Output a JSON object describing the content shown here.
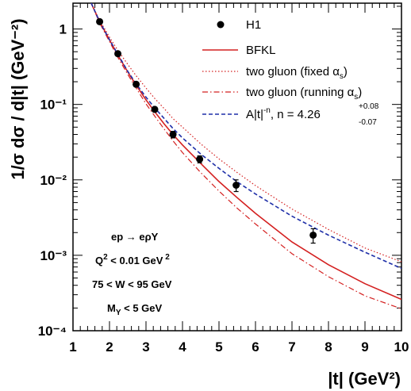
{
  "chart_data": {
    "type": "line",
    "xlabel": "|t| (GeV²)",
    "ylabel": "1/σ dσ / d|t| (GeV⁻²)",
    "xlim": [
      1,
      10
    ],
    "ylim": [
      0.0001,
      2.2
    ],
    "yscale": "log",
    "x_ticks": [
      1,
      2,
      3,
      4,
      5,
      6,
      7,
      8,
      9,
      10
    ],
    "y_ticks": [
      {
        "value": 1,
        "label": "1"
      },
      {
        "value": 0.1,
        "label": "10⁻¹"
      },
      {
        "value": 0.01,
        "label": "10⁻²"
      },
      {
        "value": 0.001,
        "label": "10⁻³"
      },
      {
        "value": 0.0001,
        "label": "10⁻⁴"
      }
    ],
    "legend_position": "top-right",
    "grid": false,
    "points": {
      "name": "H1",
      "color": "#000000",
      "data": [
        {
          "x": 1.73,
          "y": 1.25,
          "err_low": 0.08,
          "err_high": 0.08
        },
        {
          "x": 2.23,
          "y": 0.47,
          "err_low": 0.03,
          "err_high": 0.03
        },
        {
          "x": 2.73,
          "y": 0.185,
          "err_low": 0.012,
          "err_high": 0.012
        },
        {
          "x": 3.24,
          "y": 0.086,
          "err_low": 0.006,
          "err_high": 0.006
        },
        {
          "x": 3.74,
          "y": 0.04,
          "err_low": 0.004,
          "err_high": 0.004
        },
        {
          "x": 4.47,
          "y": 0.0188,
          "err_low": 0.002,
          "err_high": 0.002
        },
        {
          "x": 5.47,
          "y": 0.0085,
          "err_low": 0.0015,
          "err_high": 0.0015
        },
        {
          "x": 7.58,
          "y": 0.00185,
          "err_low": 0.0004,
          "err_high": 0.0004
        }
      ]
    },
    "series": [
      {
        "name": "BFKL",
        "color": "#d42020",
        "dash": "solid",
        "x": [
          1.5,
          1.73,
          2.0,
          2.23,
          2.5,
          2.73,
          3.0,
          3.24,
          3.5,
          3.74,
          4.0,
          4.5,
          5.0,
          5.5,
          6.0,
          7.0,
          8.0,
          9.0,
          10.0
        ],
        "y": [
          2.2,
          1.25,
          0.72,
          0.45,
          0.27,
          0.18,
          0.115,
          0.08,
          0.055,
          0.04,
          0.029,
          0.0165,
          0.0095,
          0.0058,
          0.0036,
          0.0015,
          0.00075,
          0.00042,
          0.00026
        ]
      },
      {
        "name": "two gluon (fixed αs)",
        "color": "#d42020",
        "dash": "dotted",
        "x": [
          1.5,
          1.73,
          2.0,
          2.23,
          2.5,
          2.73,
          3.0,
          3.24,
          3.5,
          3.74,
          4.0,
          4.5,
          5.0,
          5.5,
          6.0,
          7.0,
          8.0,
          9.0,
          10.0
        ],
        "y": [
          2.2,
          1.3,
          0.78,
          0.52,
          0.34,
          0.24,
          0.165,
          0.12,
          0.088,
          0.065,
          0.05,
          0.03,
          0.019,
          0.0125,
          0.0084,
          0.0041,
          0.0022,
          0.00125,
          0.00082
        ]
      },
      {
        "name": "two gluon (running αs)",
        "color": "#d42020",
        "dash": "dashdot",
        "x": [
          1.5,
          1.73,
          2.0,
          2.23,
          2.5,
          2.73,
          3.0,
          3.24,
          3.5,
          3.74,
          4.0,
          4.5,
          5.0,
          5.5,
          6.0,
          7.0,
          8.0,
          9.0,
          10.0
        ],
        "y": [
          2.2,
          1.2,
          0.68,
          0.42,
          0.25,
          0.165,
          0.102,
          0.07,
          0.047,
          0.033,
          0.023,
          0.0125,
          0.0071,
          0.0042,
          0.0026,
          0.00105,
          0.00052,
          0.00029,
          0.000195
        ]
      },
      {
        "name": "A|t|⁻ⁿ, n = 4.26",
        "color": "#1f2fa8",
        "dash": "dashed",
        "x": [
          1.5,
          1.73,
          2.0,
          2.23,
          2.5,
          2.73,
          3.0,
          3.24,
          3.5,
          3.74,
          4.0,
          4.5,
          5.0,
          5.5,
          6.0,
          7.0,
          8.0,
          9.0,
          10.0
        ],
        "y": [
          2.2,
          1.25,
          0.72,
          0.46,
          0.275,
          0.188,
          0.125,
          0.09,
          0.065,
          0.048,
          0.036,
          0.022,
          0.0142,
          0.0094,
          0.0065,
          0.0033,
          0.00185,
          0.0011,
          0.00067
        ]
      }
    ],
    "legend": {
      "h1": "H1",
      "bfkl": "BFKL",
      "fixed_prefix": "two gluon (fixed α",
      "fixed_sub": "s",
      "fixed_suffix": ")",
      "running_prefix": "two gluon (running α",
      "running_sub": "s",
      "running_suffix": ")",
      "fit_a": "A|t|",
      "fit_exp": "-n",
      "fit_rest": ", n = 4.26",
      "fit_err_up": "+0.08",
      "fit_err_down": "-0.07"
    },
    "annotations": {
      "line1": "ep → eρY",
      "line2_prefix": "Q",
      "line2_exp": "2",
      "line2_mid": " < 0.01 GeV",
      "line2_exp2": " 2",
      "line3": "75 < W < 95 GeV",
      "line4_prefix": "M",
      "line4_sub": "Y",
      "line4_suffix": " < 5 GeV"
    }
  }
}
